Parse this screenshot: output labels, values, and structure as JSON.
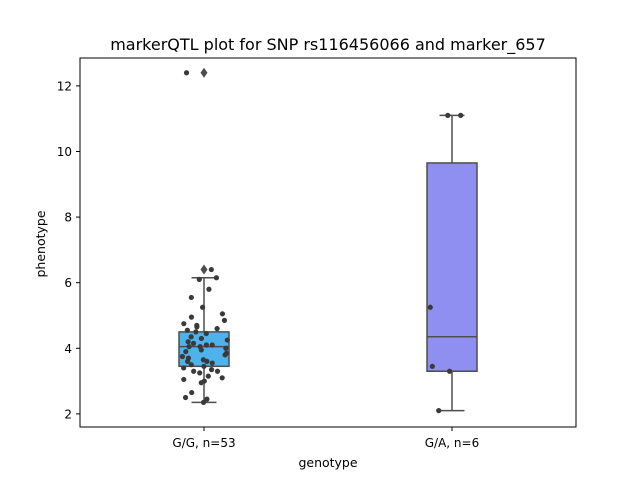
{
  "chart_data": {
    "type": "box",
    "title": "markerQTL plot for SNP rs116456066 and marker_657",
    "xlabel": "genotype",
    "ylabel": "phenotype",
    "ylim": [
      1.6,
      12.85
    ],
    "yticks": [
      2,
      4,
      6,
      8,
      10,
      12
    ],
    "grid": false,
    "categories": [
      "G/G, n=53",
      "G/A, n=6"
    ],
    "boxes": [
      {
        "category": "G/G, n=53",
        "color": "#4fb3eb",
        "q1": 3.45,
        "median": 4.05,
        "q3": 4.5,
        "whisker_low": 2.35,
        "whisker_high": 6.15,
        "outliers": [
          6.4,
          12.4
        ],
        "points": [
          2.35,
          2.45,
          2.5,
          2.65,
          2.95,
          3.0,
          3.05,
          3.1,
          3.15,
          3.25,
          3.3,
          3.3,
          3.35,
          3.4,
          3.45,
          3.5,
          3.55,
          3.6,
          3.6,
          3.65,
          3.7,
          3.75,
          3.8,
          3.85,
          3.9,
          3.95,
          4.0,
          4.05,
          4.05,
          4.1,
          4.1,
          4.15,
          4.2,
          4.25,
          4.3,
          4.35,
          4.45,
          4.5,
          4.55,
          4.6,
          4.65,
          4.7,
          4.75,
          4.85,
          4.95,
          5.05,
          5.25,
          5.55,
          5.8,
          6.1,
          6.15,
          6.4,
          12.4
        ]
      },
      {
        "category": "G/A, n=6",
        "color": "#8f8ff2",
        "q1": 3.3,
        "median": 4.35,
        "q3": 9.65,
        "whisker_low": 2.1,
        "whisker_high": 11.1,
        "outliers": [],
        "points": [
          2.1,
          3.3,
          3.45,
          5.25,
          11.1,
          11.1
        ]
      }
    ]
  }
}
